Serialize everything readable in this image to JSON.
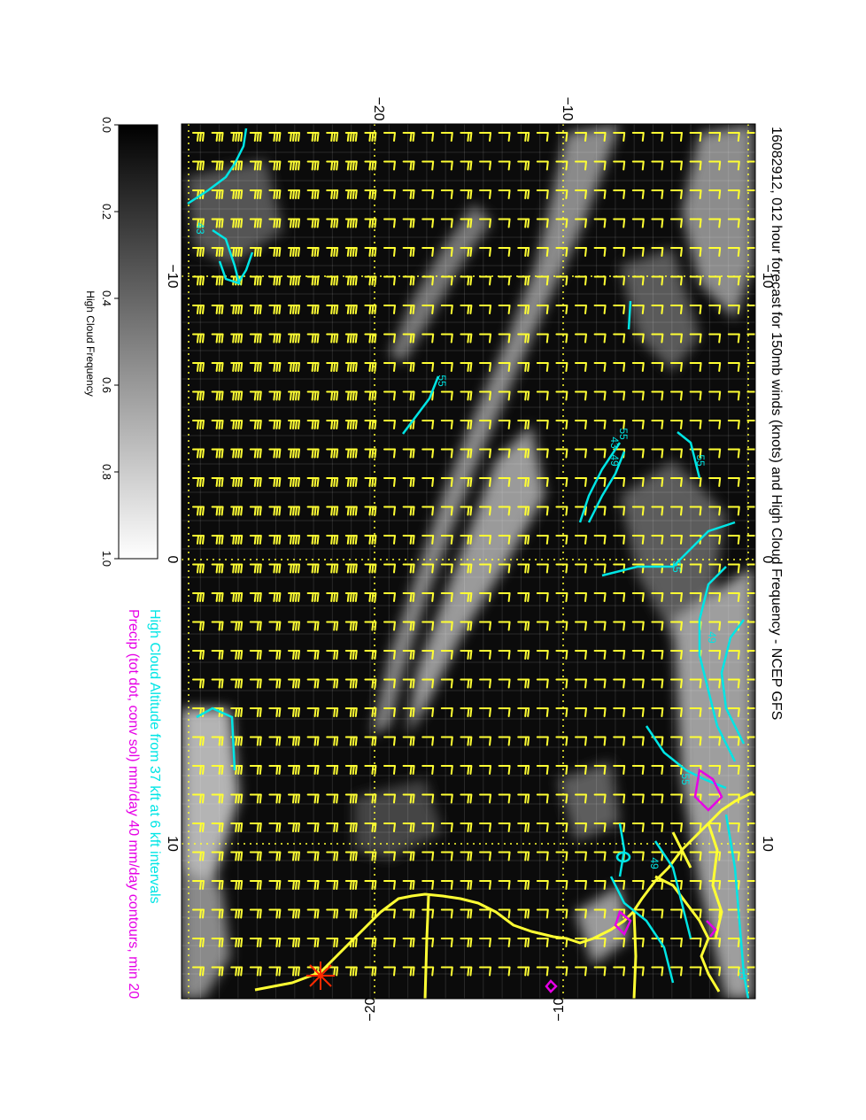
{
  "figure": {
    "title": "16082912, 012 hour forecast for 150mb winds (knots) and High Cloud Frequency - NCEP GFS",
    "caption_line1": "High Cloud Altitude from 37 kft at 6 kft intervals",
    "caption_line2": "Precip (tot dot, conv sol) mm/day 40 mm/day contours, min 20",
    "caption_line1_color": "#00e5e5",
    "caption_line2_color": "#e600e6"
  },
  "colorbar": {
    "label": "High Cloud Frequency",
    "ticks": [
      "0.0",
      "0.2",
      "0.4",
      "0.6",
      "0.8",
      "1.0"
    ],
    "from_color": "#000000",
    "to_color": "#ffffff"
  },
  "map": {
    "lon_labels": [
      "−20",
      "−10"
    ],
    "lat_labels": [
      "−10",
      "0",
      "10"
    ],
    "bottom_labels": [
      "−20",
      "−10"
    ],
    "wind_barb_color": "#ffff33",
    "contour_color": "#00e5e5",
    "precip_color": "#e600e6",
    "coastline_color": "#ffff33",
    "contour_labels": [
      "43",
      "55",
      "55",
      "49",
      "43",
      "55",
      "55",
      "49",
      "55",
      "49",
      "55"
    ]
  }
}
